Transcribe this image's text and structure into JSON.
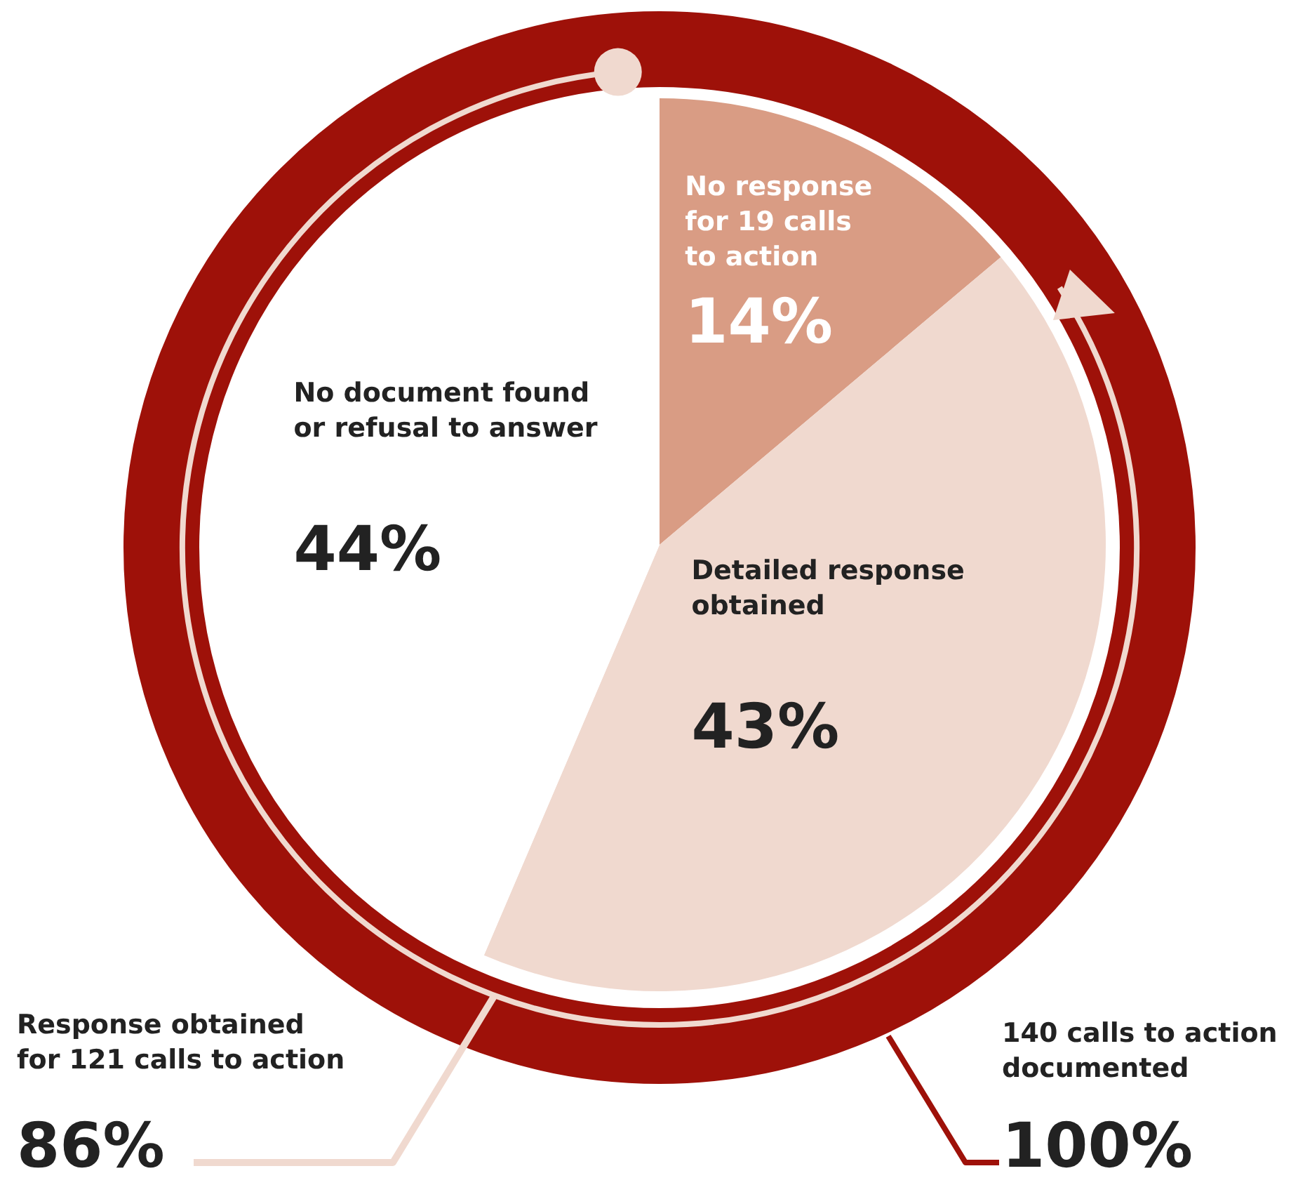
{
  "chart_data": {
    "type": "pie",
    "categories": [
      "No response for 19 calls to action",
      "Detailed response obtained",
      "No document found or refusal to answer"
    ],
    "values": [
      14,
      43,
      44
    ],
    "value_labels": [
      "14%",
      "43%",
      "44%"
    ],
    "colors": [
      "#d99c84",
      "#f0d9cf",
      "#ffffff"
    ],
    "legend": false,
    "annotations": [
      "Response obtained for 121 calls to action",
      "86%",
      "140 calls to action documented",
      "100%"
    ]
  }
}
